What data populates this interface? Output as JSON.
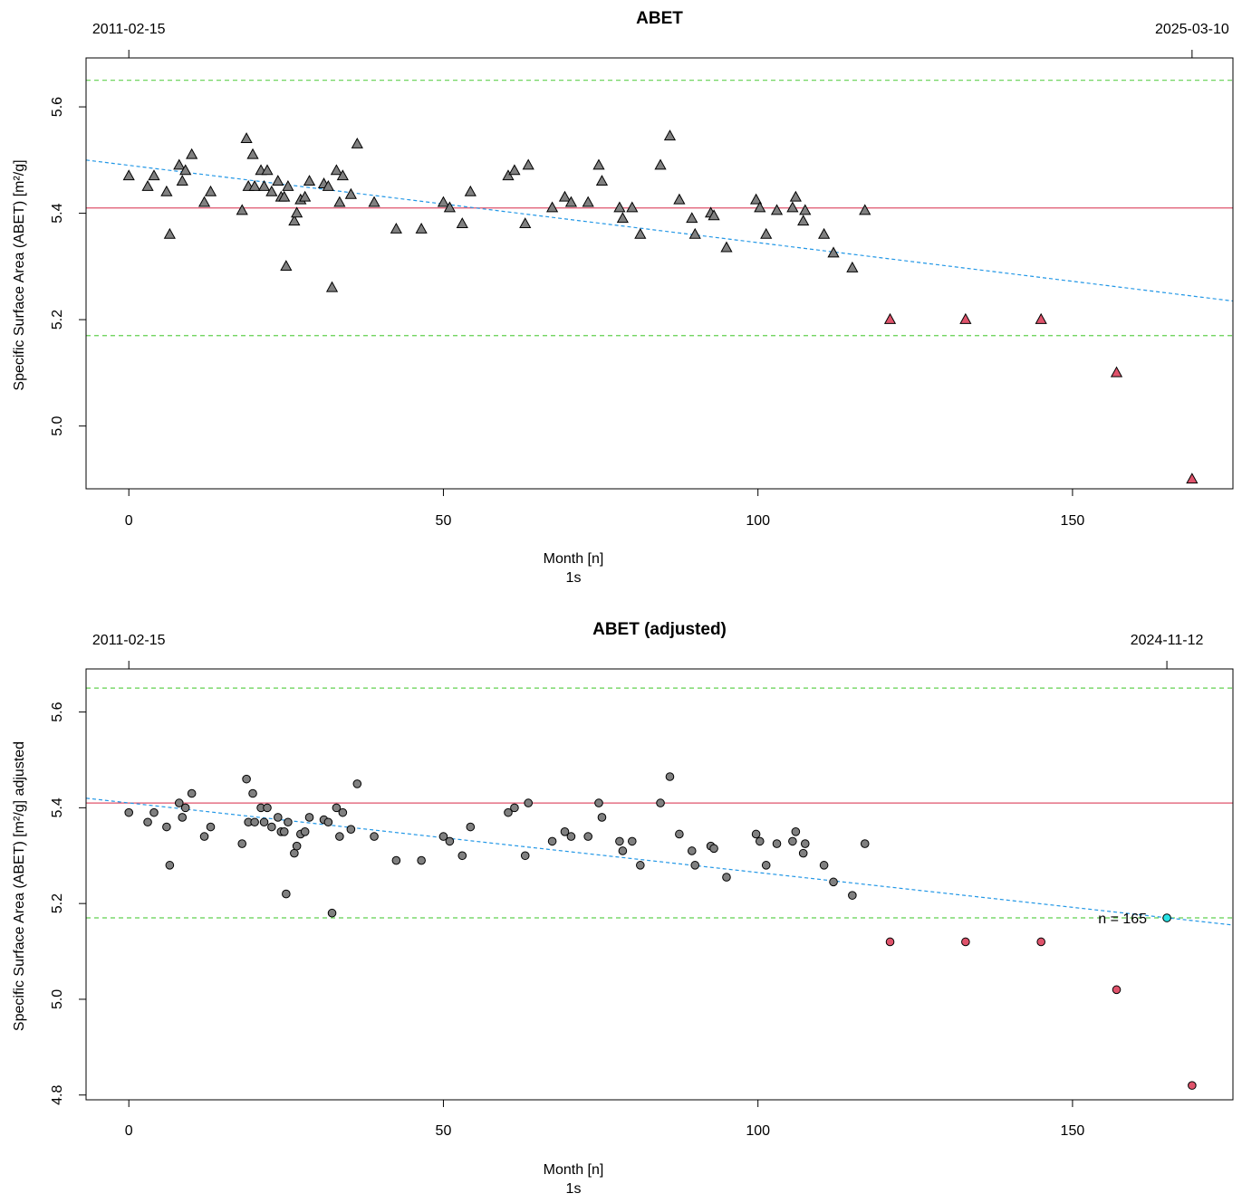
{
  "chart_data": [
    {
      "type": "scatter",
      "title": "ABET",
      "xlabel": "Month [n]",
      "xsublabel": "1s",
      "ylabel": "Specific Surface Area (ABET) [m²/g]",
      "top_left_date": "2011-02-15",
      "top_right_date": "2025-03-10",
      "top_right_x": 169,
      "xlim": [
        -6.8,
        175.5
      ],
      "ylim": [
        4.882,
        5.692
      ],
      "xticks": [
        0,
        50,
        100,
        150
      ],
      "yticks": [
        5.0,
        5.2,
        5.4,
        5.6
      ],
      "grid": false,
      "marker": "triangle",
      "mean": 5.41,
      "limits": [
        5.17,
        5.65
      ],
      "trend": {
        "x0": -6.8,
        "y0": 5.5,
        "x1": 175.5,
        "y1": 5.235
      },
      "colors": {
        "point": "#808080",
        "outlier": "#DF536B",
        "mean": "#DF536B",
        "limit": "#61D04F",
        "trend": "#2297E6"
      },
      "points": [
        [
          0,
          5.47
        ],
        [
          3,
          5.45
        ],
        [
          4,
          5.47
        ],
        [
          6,
          5.44
        ],
        [
          6.5,
          5.36
        ],
        [
          8,
          5.49
        ],
        [
          8.5,
          5.46
        ],
        [
          9,
          5.48
        ],
        [
          10,
          5.51
        ],
        [
          12,
          5.42
        ],
        [
          13,
          5.44
        ],
        [
          18,
          5.405
        ],
        [
          18.7,
          5.54
        ],
        [
          19,
          5.45
        ],
        [
          19.7,
          5.51
        ],
        [
          20,
          5.45
        ],
        [
          21,
          5.48
        ],
        [
          21.5,
          5.45
        ],
        [
          22,
          5.48
        ],
        [
          22.7,
          5.44
        ],
        [
          23.7,
          5.46
        ],
        [
          24.2,
          5.43
        ],
        [
          24.7,
          5.43
        ],
        [
          25,
          5.3
        ],
        [
          25.3,
          5.45
        ],
        [
          26.3,
          5.385
        ],
        [
          26.7,
          5.4
        ],
        [
          27.3,
          5.425
        ],
        [
          28,
          5.43
        ],
        [
          28.7,
          5.46
        ],
        [
          31,
          5.455
        ],
        [
          31.7,
          5.45
        ],
        [
          32.3,
          5.26
        ],
        [
          33,
          5.48
        ],
        [
          33.5,
          5.42
        ],
        [
          34,
          5.47
        ],
        [
          35.3,
          5.435
        ],
        [
          36.3,
          5.53
        ],
        [
          39,
          5.42
        ],
        [
          42.5,
          5.37
        ],
        [
          46.5,
          5.37
        ],
        [
          50,
          5.42
        ],
        [
          51,
          5.41
        ],
        [
          53,
          5.38
        ],
        [
          54.3,
          5.44
        ],
        [
          60.3,
          5.47
        ],
        [
          61.3,
          5.48
        ],
        [
          63,
          5.38
        ],
        [
          63.5,
          5.49
        ],
        [
          67.3,
          5.41
        ],
        [
          69.3,
          5.43
        ],
        [
          70.3,
          5.42
        ],
        [
          73,
          5.42
        ],
        [
          74.7,
          5.49
        ],
        [
          75.2,
          5.46
        ],
        [
          78,
          5.41
        ],
        [
          78.5,
          5.39
        ],
        [
          80,
          5.41
        ],
        [
          81.3,
          5.36
        ],
        [
          84.5,
          5.49
        ],
        [
          86,
          5.545
        ],
        [
          87.5,
          5.425
        ],
        [
          89.5,
          5.39
        ],
        [
          90,
          5.36
        ],
        [
          92.5,
          5.4
        ],
        [
          93,
          5.395
        ],
        [
          95,
          5.335
        ],
        [
          99.7,
          5.425
        ],
        [
          100.3,
          5.41
        ],
        [
          101.3,
          5.36
        ],
        [
          103,
          5.405
        ],
        [
          105.5,
          5.41
        ],
        [
          106,
          5.43
        ],
        [
          107.2,
          5.385
        ],
        [
          107.5,
          5.405
        ],
        [
          110.5,
          5.36
        ],
        [
          112,
          5.325
        ],
        [
          115,
          5.297
        ],
        [
          117,
          5.405
        ]
      ],
      "outliers": [
        [
          121,
          5.2
        ],
        [
          133,
          5.2
        ],
        [
          145,
          5.2
        ],
        [
          157,
          5.1
        ],
        [
          169,
          4.9
        ]
      ]
    },
    {
      "type": "scatter",
      "title": "ABET (adjusted)",
      "xlabel": "Month [n]",
      "xsublabel": "1s",
      "ylabel": "Specific Surface Area (ABET) [m²/g] adjusted",
      "top_left_date": "2011-02-15",
      "top_right_date": "2024-11-12",
      "top_right_x": 165,
      "xlim": [
        -6.8,
        175.5
      ],
      "ylim": [
        4.79,
        5.69
      ],
      "xticks": [
        0,
        50,
        100,
        150
      ],
      "yticks": [
        4.8,
        5.0,
        5.2,
        5.4,
        5.6
      ],
      "grid": false,
      "marker": "circle",
      "mean": 5.41,
      "limits": [
        5.17,
        5.65
      ],
      "trend": {
        "x0": -6.8,
        "y0": 5.42,
        "x1": 175.5,
        "y1": 5.155
      },
      "annotation": {
        "text": "n = 165",
        "x": 165,
        "y": 5.17
      },
      "colors": {
        "point": "#808080",
        "outlier": "#DF536B",
        "mean": "#DF536B",
        "limit": "#61D04F",
        "trend": "#2297E6",
        "current": "#28E2E5"
      },
      "points": [
        [
          0,
          5.39
        ],
        [
          3,
          5.37
        ],
        [
          4,
          5.39
        ],
        [
          6,
          5.36
        ],
        [
          6.5,
          5.28
        ],
        [
          8,
          5.41
        ],
        [
          8.5,
          5.38
        ],
        [
          9,
          5.4
        ],
        [
          10,
          5.43
        ],
        [
          12,
          5.34
        ],
        [
          13,
          5.36
        ],
        [
          18,
          5.325
        ],
        [
          18.7,
          5.46
        ],
        [
          19,
          5.37
        ],
        [
          19.7,
          5.43
        ],
        [
          20,
          5.37
        ],
        [
          21,
          5.4
        ],
        [
          21.5,
          5.37
        ],
        [
          22,
          5.4
        ],
        [
          22.7,
          5.36
        ],
        [
          23.7,
          5.38
        ],
        [
          24.2,
          5.35
        ],
        [
          24.7,
          5.35
        ],
        [
          25,
          5.22
        ],
        [
          25.3,
          5.37
        ],
        [
          26.3,
          5.305
        ],
        [
          26.7,
          5.32
        ],
        [
          27.3,
          5.345
        ],
        [
          28,
          5.35
        ],
        [
          28.7,
          5.38
        ],
        [
          31,
          5.375
        ],
        [
          31.7,
          5.37
        ],
        [
          32.3,
          5.18
        ],
        [
          33,
          5.4
        ],
        [
          33.5,
          5.34
        ],
        [
          34,
          5.39
        ],
        [
          35.3,
          5.355
        ],
        [
          36.3,
          5.45
        ],
        [
          39,
          5.34
        ],
        [
          42.5,
          5.29
        ],
        [
          46.5,
          5.29
        ],
        [
          50,
          5.34
        ],
        [
          51,
          5.33
        ],
        [
          53,
          5.3
        ],
        [
          54.3,
          5.36
        ],
        [
          60.3,
          5.39
        ],
        [
          61.3,
          5.4
        ],
        [
          63,
          5.3
        ],
        [
          63.5,
          5.41
        ],
        [
          67.3,
          5.33
        ],
        [
          69.3,
          5.35
        ],
        [
          70.3,
          5.34
        ],
        [
          73,
          5.34
        ],
        [
          74.7,
          5.41
        ],
        [
          75.2,
          5.38
        ],
        [
          78,
          5.33
        ],
        [
          78.5,
          5.31
        ],
        [
          80,
          5.33
        ],
        [
          81.3,
          5.28
        ],
        [
          84.5,
          5.41
        ],
        [
          86,
          5.465
        ],
        [
          87.5,
          5.345
        ],
        [
          89.5,
          5.31
        ],
        [
          90,
          5.28
        ],
        [
          92.5,
          5.32
        ],
        [
          93,
          5.315
        ],
        [
          95,
          5.255
        ],
        [
          99.7,
          5.345
        ],
        [
          100.3,
          5.33
        ],
        [
          101.3,
          5.28
        ],
        [
          103,
          5.325
        ],
        [
          105.5,
          5.33
        ],
        [
          106,
          5.35
        ],
        [
          107.2,
          5.305
        ],
        [
          107.5,
          5.325
        ],
        [
          110.5,
          5.28
        ],
        [
          112,
          5.245
        ],
        [
          115,
          5.217
        ],
        [
          117,
          5.325
        ]
      ],
      "outliers": [
        [
          121,
          5.12
        ],
        [
          133,
          5.12
        ],
        [
          145,
          5.12
        ],
        [
          157,
          5.02
        ],
        [
          169,
          4.82
        ]
      ],
      "current": [
        [
          165,
          5.17
        ]
      ]
    }
  ]
}
